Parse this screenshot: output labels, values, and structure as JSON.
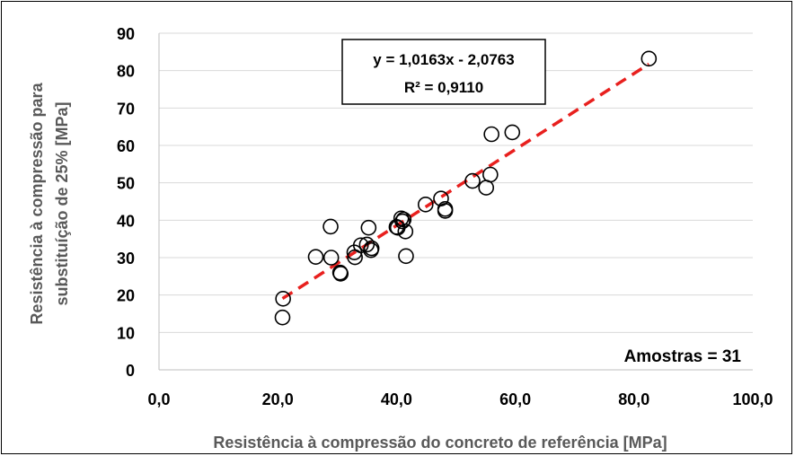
{
  "chart_data": {
    "type": "scatter",
    "xlabel": "Resistência à compressão do concreto de referência [MPa]",
    "ylabel_lines": [
      "Resistência à compressão para",
      "substituíção de 25% [MPa]"
    ],
    "xlim": [
      0,
      100
    ],
    "ylim": [
      0,
      90
    ],
    "x_ticks": [
      "0,0",
      "20,0",
      "40,0",
      "60,0",
      "80,0",
      "100,0"
    ],
    "y_ticks": [
      "0",
      "10",
      "20",
      "30",
      "40",
      "50",
      "60",
      "70",
      "80",
      "90"
    ],
    "x_tick_values": [
      0,
      20,
      40,
      60,
      80,
      100
    ],
    "y_tick_values": [
      0,
      10,
      20,
      30,
      40,
      50,
      60,
      70,
      80,
      90
    ],
    "points": [
      [
        20.8,
        14.0
      ],
      [
        20.9,
        19.0
      ],
      [
        26.4,
        30.2
      ],
      [
        28.9,
        38.3
      ],
      [
        29.0,
        30.0
      ],
      [
        30.5,
        26.0
      ],
      [
        30.6,
        25.7
      ],
      [
        32.9,
        31.4
      ],
      [
        33.0,
        30.1
      ],
      [
        34.0,
        33.3
      ],
      [
        35.0,
        33.5
      ],
      [
        35.3,
        38.0
      ],
      [
        35.7,
        32.0
      ],
      [
        35.8,
        32.5
      ],
      [
        40.2,
        38.0
      ],
      [
        40.8,
        40.5
      ],
      [
        41.0,
        39.7
      ],
      [
        41.2,
        40.2
      ],
      [
        41.5,
        37.0
      ],
      [
        41.6,
        30.4
      ],
      [
        44.9,
        44.2
      ],
      [
        47.5,
        45.8
      ],
      [
        48.2,
        43.0
      ],
      [
        48.2,
        42.5
      ],
      [
        52.8,
        50.5
      ],
      [
        55.1,
        48.7
      ],
      [
        55.8,
        52.2
      ],
      [
        56.0,
        63.0
      ],
      [
        59.5,
        63.5
      ],
      [
        82.5,
        83.2
      ],
      [
        40.0,
        38.2
      ]
    ],
    "trendline": {
      "slope": 1.0163,
      "intercept": -2.0763,
      "x_range": [
        20.8,
        82.5
      ],
      "color": "#e8201e",
      "style": "dashed"
    },
    "equation_lines": [
      "y = 1,0163x - 2,0763",
      "R² = 0,9110"
    ],
    "samples_label": "Amostras = 31",
    "marker": "open-circle",
    "grid": "horizontal",
    "legend": "none"
  }
}
